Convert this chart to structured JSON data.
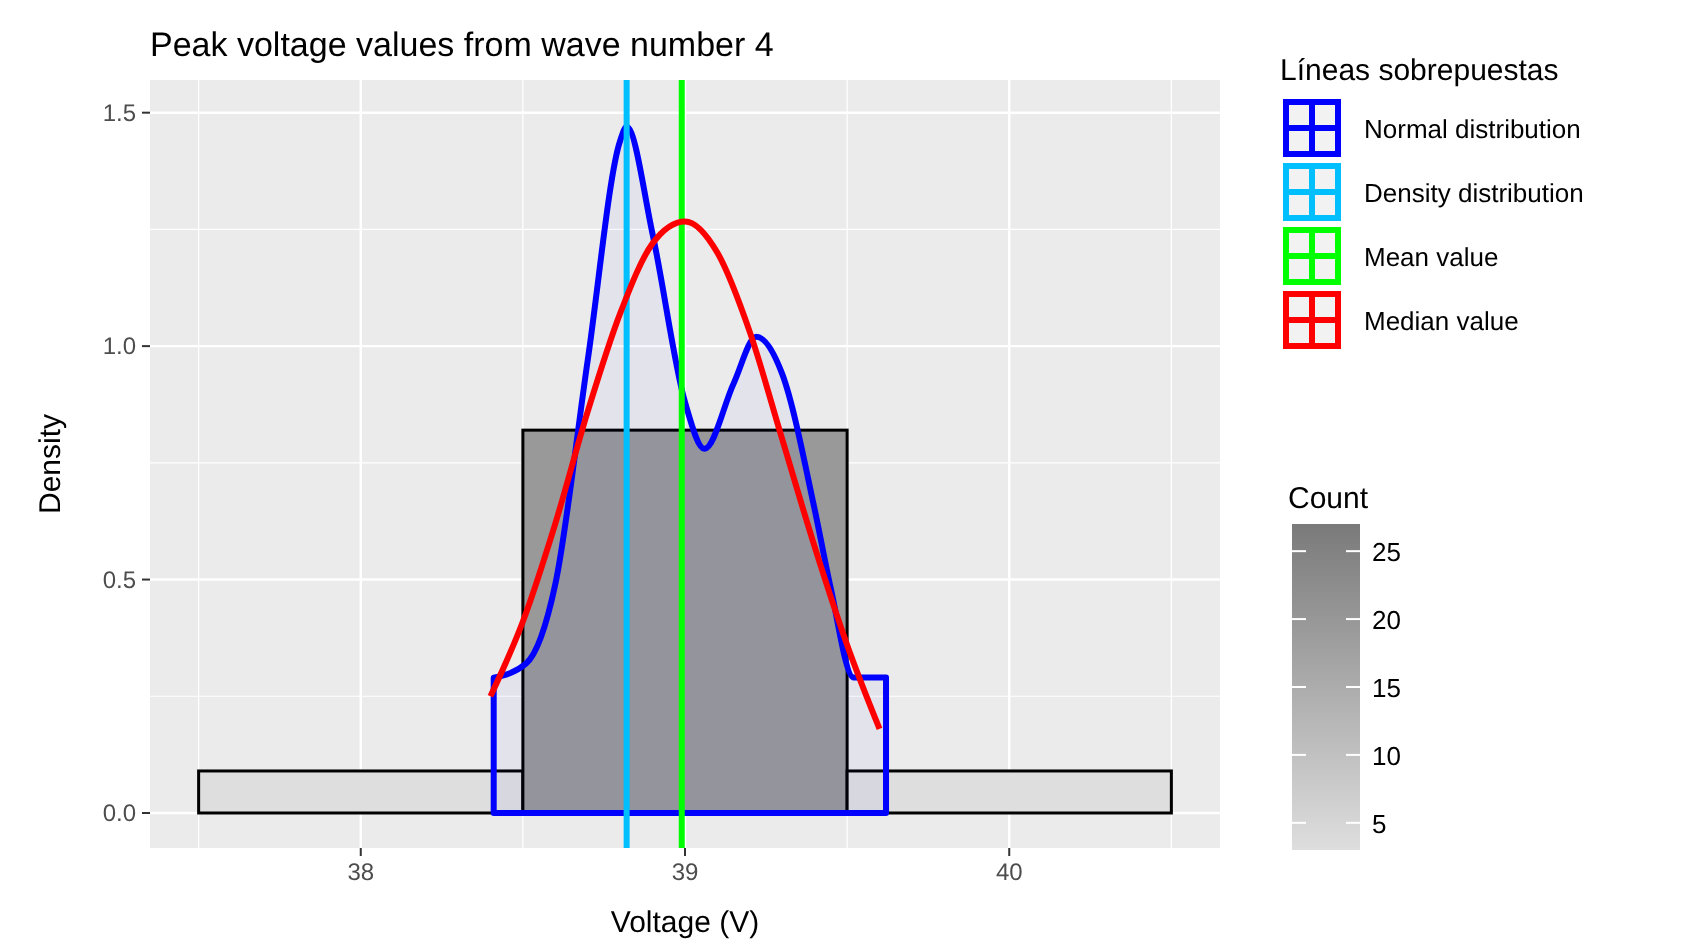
{
  "chart_data": {
    "type": "histogram",
    "title": "Peak voltage values from wave number 4",
    "xlabel": "Voltage (V)",
    "ylabel": "Density",
    "legend_title": "Líneas sobrepuestas",
    "clabel": "Count",
    "clim": [
      3,
      27
    ],
    "cticks": [
      5,
      10,
      15,
      20,
      25
    ],
    "bins": [
      37.5,
      38.5,
      39.5,
      40.5
    ],
    "values": [
      0.09,
      0.82,
      0.09
    ],
    "colors": [
      "#dedede",
      "#999999",
      "#dedede"
    ],
    "series": [
      {
        "name": "Normal distribution",
        "type": "area",
        "color": "#0000ff",
        "x": [
          38.41,
          38.51,
          38.6,
          38.7,
          38.8,
          38.82,
          38.9,
          39.0,
          39.06,
          39.15,
          39.22,
          39.3,
          39.4,
          39.45,
          39.52,
          39.62
        ],
        "values": [
          0.29,
          0.32,
          0.49,
          0.97,
          1.44,
          1.47,
          1.24,
          0.88,
          0.78,
          0.92,
          1.02,
          0.94,
          0.65,
          0.48,
          0.29,
          0.29
        ]
      },
      {
        "name": "Density distribution",
        "type": "line",
        "color": "#00bfff",
        "x": [
          38.82,
          38.82
        ],
        "values": [
          -0.075,
          1.57
        ]
      },
      {
        "name": "Mean value",
        "type": "line",
        "color": "#00ff00",
        "x": [
          38.99,
          38.99
        ],
        "values": [
          -0.075,
          1.57
        ]
      },
      {
        "name": "Median value",
        "type": "line",
        "color": "#ff0000",
        "x": [
          38.4,
          38.5,
          38.6,
          38.7,
          38.8,
          38.9,
          39.0,
          39.1,
          39.2,
          39.3,
          39.4,
          39.5,
          39.6
        ],
        "values": [
          0.25,
          0.41,
          0.62,
          0.86,
          1.07,
          1.22,
          1.267,
          1.2,
          1.03,
          0.8,
          0.57,
          0.36,
          0.18
        ]
      }
    ],
    "xlim": [
      37.35,
      40.65
    ],
    "ylim": [
      -0.075,
      1.57
    ],
    "xticks": [
      38,
      39,
      40
    ],
    "yticks": [
      {
        "value": 0,
        "label": "0.0"
      },
      0.5,
      {
        "value": 1,
        "label": "1.0"
      },
      1.5
    ],
    "grid": true,
    "legend": "right"
  }
}
